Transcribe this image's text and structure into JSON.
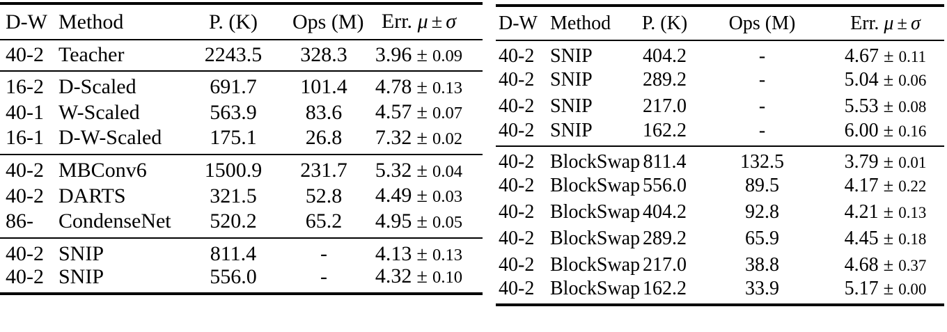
{
  "page": {
    "background_color": "#ffffff",
    "text_color": "#000000",
    "rule_color": "#000000"
  },
  "symbols": {
    "plus_minus": "±",
    "missing_value": "-"
  },
  "tables": [
    {
      "id": "left-results-table",
      "headers": [
        {
          "key": "dw",
          "label": "D-W"
        },
        {
          "key": "method",
          "label": "Method"
        },
        {
          "key": "params",
          "label": "P. (K)"
        },
        {
          "key": "ops",
          "label": "Ops (M)"
        },
        {
          "key": "err",
          "label": "Err.",
          "mu": "μ",
          "pm": "±",
          "sigma": "σ"
        }
      ],
      "groups": [
        {
          "rows": [
            {
              "dw": "40-2",
              "method": "Teacher",
              "p": "2243.5",
              "ops": "328.3",
              "err_mean": "3.96",
              "err_std": "0.09"
            }
          ]
        },
        {
          "rows": [
            {
              "dw": "16-2",
              "method": "D-Scaled",
              "p": "691.7",
              "ops": "101.4",
              "err_mean": "4.78",
              "err_std": "0.13"
            },
            {
              "dw": "40-1",
              "method": "W-Scaled",
              "p": "563.9",
              "ops": "83.6",
              "err_mean": "4.57",
              "err_std": "0.07"
            },
            {
              "dw": "16-1",
              "method": "D-W-Scaled",
              "p": "175.1",
              "ops": "26.8",
              "err_mean": "7.32",
              "err_std": "0.02"
            }
          ]
        },
        {
          "rows": [
            {
              "dw": "40-2",
              "method": "MBConv6",
              "p": "1500.9",
              "ops": "231.7",
              "err_mean": "5.32",
              "err_std": "0.04"
            },
            {
              "dw": "40-2",
              "method": "DARTS",
              "p": "321.5",
              "ops": "52.8",
              "err_mean": "4.49",
              "err_std": "0.03"
            },
            {
              "dw": "86-",
              "method": "CondenseNet",
              "p": "520.2",
              "ops": "65.2",
              "err_mean": "4.95",
              "err_std": "0.05"
            }
          ]
        },
        {
          "rows": [
            {
              "dw": "40-2",
              "method": "SNIP",
              "p": "811.4",
              "ops": "-",
              "err_mean": "4.13",
              "err_std": "0.13"
            },
            {
              "dw": "40-2",
              "method": "SNIP",
              "p": "556.0",
              "ops": "-",
              "err_mean": "4.32",
              "err_std": "0.10"
            }
          ]
        }
      ]
    },
    {
      "id": "right-results-table",
      "headers": [
        {
          "key": "dw",
          "label": "D-W"
        },
        {
          "key": "method",
          "label": "Method"
        },
        {
          "key": "params",
          "label": "P. (K)"
        },
        {
          "key": "ops",
          "label": "Ops (M)"
        },
        {
          "key": "err",
          "label": "Err.",
          "mu": "μ",
          "pm": "±",
          "sigma": "σ"
        }
      ],
      "groups": [
        {
          "rows": [
            {
              "dw": "40-2",
              "method": "SNIP",
              "p": "404.2",
              "ops": "-",
              "err_mean": "4.67",
              "err_std": "0.11"
            },
            {
              "dw": "40-2",
              "method": "SNIP",
              "p": "289.2",
              "ops": "-",
              "err_mean": "5.04",
              "err_std": "0.06"
            },
            {
              "dw": "40-2",
              "method": "SNIP",
              "p": "217.0",
              "ops": "-",
              "err_mean": "5.53",
              "err_std": "0.08"
            },
            {
              "dw": "40-2",
              "method": "SNIP",
              "p": "162.2",
              "ops": "-",
              "err_mean": "6.00",
              "err_std": "0.16"
            }
          ]
        },
        {
          "rows": [
            {
              "dw": "40-2",
              "method": "BlockSwap",
              "p": "811.4",
              "ops": "132.5",
              "err_mean": "3.79",
              "err_std": "0.01"
            },
            {
              "dw": "40-2",
              "method": "BlockSwap",
              "p": "556.0",
              "ops": "89.5",
              "err_mean": "4.17",
              "err_std": "0.22"
            },
            {
              "dw": "40-2",
              "method": "BlockSwap",
              "p": "404.2",
              "ops": "92.8",
              "err_mean": "4.21",
              "err_std": "0.13"
            },
            {
              "dw": "40-2",
              "method": "BlockSwap",
              "p": "289.2",
              "ops": "65.9",
              "err_mean": "4.45",
              "err_std": "0.18"
            },
            {
              "dw": "40-2",
              "method": "BlockSwap",
              "p": "217.0",
              "ops": "38.8",
              "err_mean": "4.68",
              "err_std": "0.37"
            },
            {
              "dw": "40-2",
              "method": "BlockSwap",
              "p": "162.2",
              "ops": "33.9",
              "err_mean": "5.17",
              "err_std": "0.00"
            }
          ]
        }
      ]
    }
  ]
}
